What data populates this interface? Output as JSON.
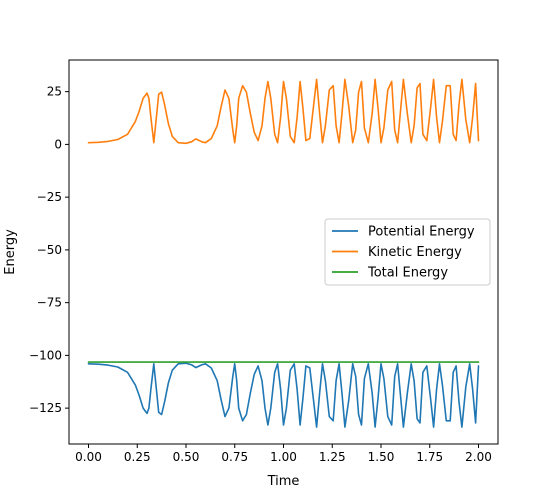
{
  "chart_data": {
    "type": "line",
    "title": "",
    "xlabel": "Time",
    "ylabel": "Energy",
    "xlim": [
      -0.1,
      2.1
    ],
    "ylim": [
      -142,
      40
    ],
    "grid": false,
    "legend_position": "center-right",
    "x_ticks": [
      {
        "value": 0.0,
        "label": "0.00"
      },
      {
        "value": 0.25,
        "label": "0.25"
      },
      {
        "value": 0.5,
        "label": "0.50"
      },
      {
        "value": 0.75,
        "label": "0.75"
      },
      {
        "value": 1.0,
        "label": "1.00"
      },
      {
        "value": 1.25,
        "label": "1.25"
      },
      {
        "value": 1.5,
        "label": "1.50"
      },
      {
        "value": 1.75,
        "label": "1.75"
      },
      {
        "value": 2.0,
        "label": "2.00"
      }
    ],
    "y_ticks": [
      {
        "value": 25,
        "label": "25"
      },
      {
        "value": 0,
        "label": "0"
      },
      {
        "value": -25,
        "label": "−25"
      },
      {
        "value": -50,
        "label": "−50"
      },
      {
        "value": -75,
        "label": "−75"
      },
      {
        "value": -100,
        "label": "−100"
      },
      {
        "value": -125,
        "label": "−125"
      }
    ],
    "total_energy": -103.2,
    "series": [
      {
        "name": "Potential Energy",
        "color": "#1f77b4",
        "x": [
          0.0,
          0.05,
          0.1,
          0.15,
          0.2,
          0.24,
          0.26,
          0.28,
          0.3,
          0.31,
          0.32,
          0.335,
          0.35,
          0.36,
          0.375,
          0.39,
          0.41,
          0.43,
          0.46,
          0.5,
          0.53,
          0.55,
          0.58,
          0.6,
          0.63,
          0.66,
          0.68,
          0.7,
          0.72,
          0.74,
          0.75,
          0.76,
          0.77,
          0.79,
          0.81,
          0.83,
          0.85,
          0.87,
          0.89,
          0.905,
          0.92,
          0.935,
          0.955,
          0.97,
          0.985,
          1.0,
          1.015,
          1.035,
          1.055,
          1.07,
          1.085,
          1.1,
          1.115,
          1.135,
          1.155,
          1.17,
          1.185,
          1.2,
          1.215,
          1.235,
          1.255,
          1.27,
          1.285,
          1.3,
          1.315,
          1.335,
          1.355,
          1.37,
          1.385,
          1.4,
          1.415,
          1.435,
          1.455,
          1.47,
          1.485,
          1.5,
          1.515,
          1.535,
          1.555,
          1.57,
          1.585,
          1.6,
          1.615,
          1.635,
          1.655,
          1.67,
          1.685,
          1.7,
          1.715,
          1.735,
          1.755,
          1.77,
          1.785,
          1.8,
          1.815,
          1.835,
          1.855,
          1.87,
          1.885,
          1.9,
          1.915,
          1.935,
          1.955,
          1.97,
          1.985,
          2.0
        ],
        "y": [
          -104,
          -104.2,
          -104.6,
          -105.5,
          -108,
          -114,
          -119,
          -125,
          -127.5,
          -125,
          -116,
          -104,
          -118,
          -127,
          -128,
          -122,
          -113,
          -107,
          -104,
          -103.7,
          -104.5,
          -105.8,
          -104.5,
          -104,
          -106,
          -112,
          -121,
          -129,
          -125,
          -110,
          -104,
          -112,
          -125,
          -131,
          -128,
          -118,
          -109,
          -105,
          -112,
          -125,
          -133,
          -125,
          -108,
          -104,
          -116,
          -133,
          -125,
          -107,
          -104,
          -116,
          -133,
          -120,
          -105,
          -106,
          -122,
          -134,
          -118,
          -104,
          -112,
          -129,
          -131,
          -112,
          -104,
          -118,
          -134,
          -121,
          -104,
          -110,
          -128,
          -133,
          -111,
          -104,
          -118,
          -134,
          -120,
          -104,
          -111,
          -129,
          -133,
          -110,
          -104,
          -119,
          -134,
          -118,
          -104,
          -112,
          -130,
          -132,
          -108,
          -105,
          -121,
          -134,
          -116,
          -104,
          -114,
          -131,
          -131,
          -108,
          -105,
          -122,
          -134,
          -115,
          -104,
          -116,
          -132,
          -105
        ]
      },
      {
        "name": "Kinetic Energy",
        "color": "#ff7f0e",
        "x": [
          0.0,
          0.05,
          0.1,
          0.15,
          0.2,
          0.24,
          0.26,
          0.28,
          0.3,
          0.31,
          0.32,
          0.335,
          0.35,
          0.36,
          0.375,
          0.39,
          0.41,
          0.43,
          0.46,
          0.5,
          0.53,
          0.55,
          0.58,
          0.6,
          0.63,
          0.66,
          0.68,
          0.7,
          0.72,
          0.74,
          0.75,
          0.76,
          0.77,
          0.79,
          0.81,
          0.83,
          0.85,
          0.87,
          0.89,
          0.905,
          0.92,
          0.935,
          0.955,
          0.97,
          0.985,
          1.0,
          1.015,
          1.035,
          1.055,
          1.07,
          1.085,
          1.1,
          1.115,
          1.135,
          1.155,
          1.17,
          1.185,
          1.2,
          1.215,
          1.235,
          1.255,
          1.27,
          1.285,
          1.3,
          1.315,
          1.335,
          1.355,
          1.37,
          1.385,
          1.4,
          1.415,
          1.435,
          1.455,
          1.47,
          1.485,
          1.5,
          1.515,
          1.535,
          1.555,
          1.57,
          1.585,
          1.6,
          1.615,
          1.635,
          1.655,
          1.67,
          1.685,
          1.7,
          1.715,
          1.735,
          1.755,
          1.77,
          1.785,
          1.8,
          1.815,
          1.835,
          1.855,
          1.87,
          1.885,
          1.9,
          1.915,
          1.935,
          1.955,
          1.97,
          1.985,
          2.0
        ],
        "y": [
          0.8,
          1.0,
          1.4,
          2.3,
          4.8,
          10.8,
          15.8,
          21.8,
          24.3,
          21.8,
          12.8,
          0.8,
          14.8,
          23.8,
          24.8,
          18.8,
          9.8,
          3.8,
          0.8,
          0.5,
          1.3,
          2.6,
          1.3,
          0.8,
          2.8,
          8.8,
          17.8,
          25.8,
          21.8,
          6.8,
          0.8,
          8.8,
          21.8,
          27.8,
          24.8,
          14.8,
          5.8,
          1.8,
          8.8,
          21.8,
          29.8,
          21.8,
          4.8,
          0.8,
          12.8,
          29.8,
          21.8,
          3.8,
          0.8,
          12.8,
          29.8,
          16.8,
          1.8,
          2.8,
          18.8,
          30.8,
          14.8,
          0.8,
          8.8,
          25.8,
          27.8,
          8.8,
          0.8,
          14.8,
          30.8,
          17.8,
          0.8,
          6.8,
          24.8,
          29.8,
          7.8,
          0.8,
          14.8,
          30.8,
          16.8,
          0.8,
          7.8,
          25.8,
          29.8,
          6.8,
          0.8,
          15.8,
          30.8,
          14.8,
          0.8,
          8.8,
          26.8,
          28.8,
          4.8,
          1.8,
          17.8,
          30.8,
          12.8,
          0.8,
          10.8,
          27.8,
          27.8,
          4.8,
          1.8,
          18.8,
          30.8,
          11.8,
          0.8,
          12.8,
          28.8,
          1.8
        ]
      },
      {
        "name": "Total Energy",
        "color": "#2ca02c",
        "x": [
          0.0,
          2.0
        ],
        "y": [
          -103.2,
          -103.2
        ]
      }
    ]
  }
}
